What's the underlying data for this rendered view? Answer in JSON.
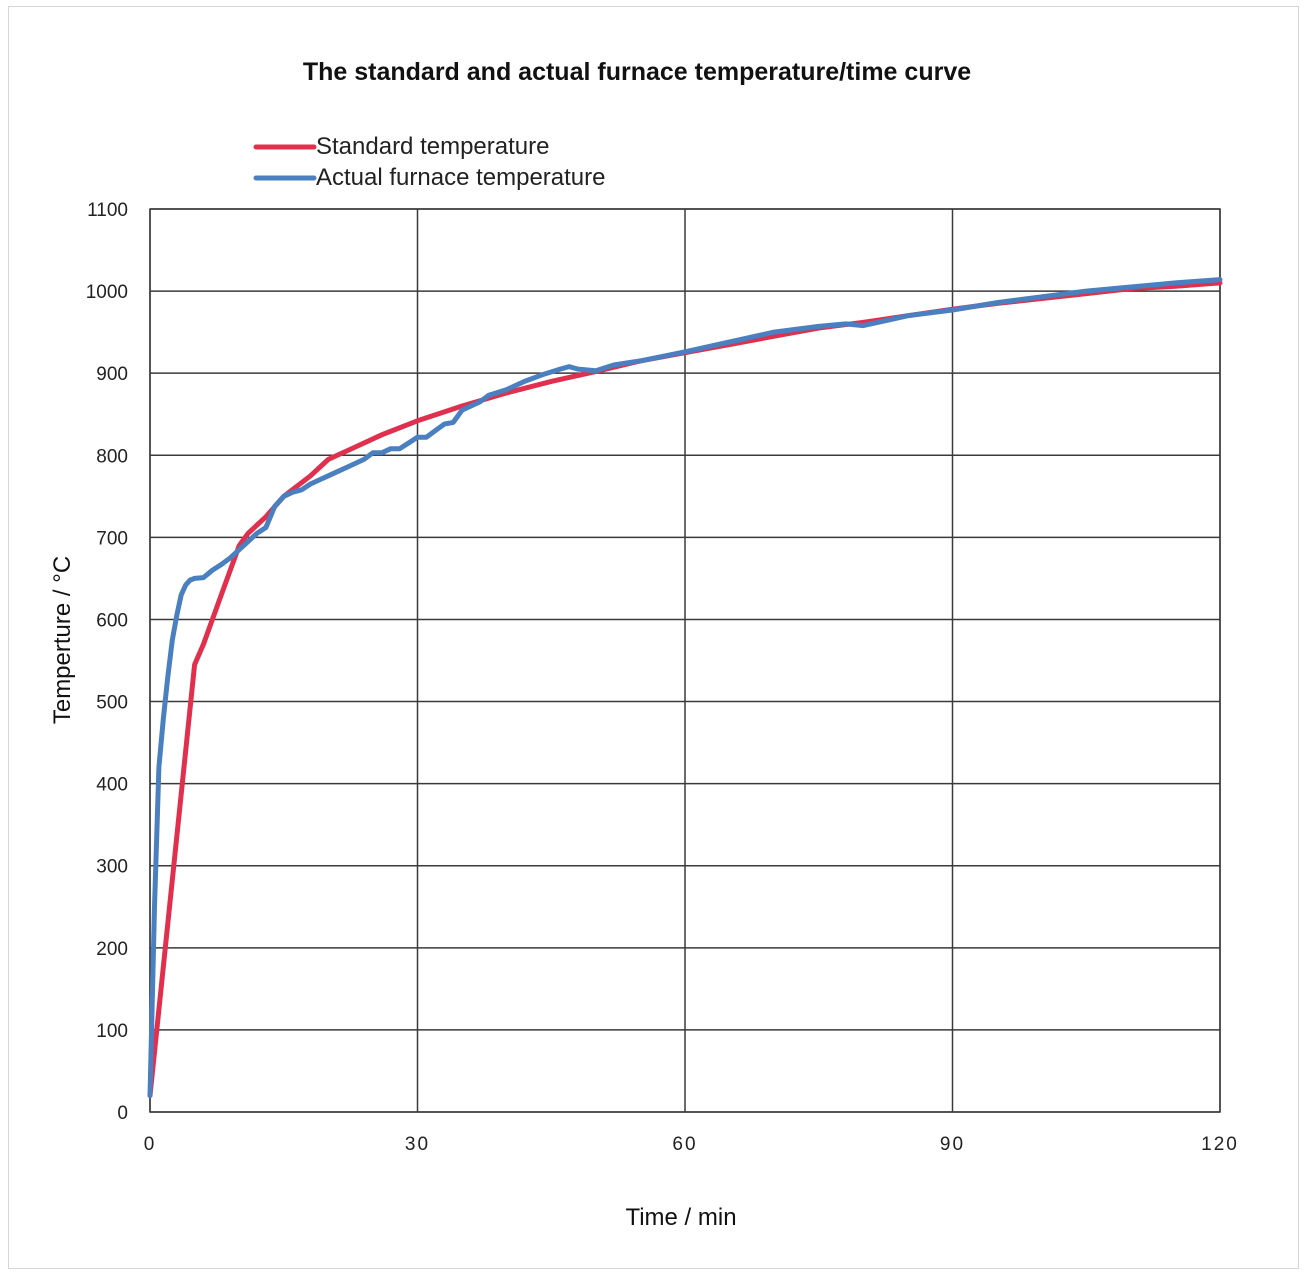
{
  "chart_data": {
    "type": "line",
    "title": "The standard and actual furnace temperature/time curve",
    "xlabel": "Time / min",
    "ylabel": "Temperture / °C",
    "xlim": [
      0,
      120
    ],
    "ylim": [
      0,
      1100
    ],
    "xticks": [
      "0",
      "30",
      "60",
      "90",
      "120"
    ],
    "yticks": [
      "0",
      "100",
      "200",
      "300",
      "400",
      "500",
      "600",
      "700",
      "800",
      "900",
      "1000",
      "1100"
    ],
    "xtick_values": [
      0,
      30,
      60,
      90,
      120
    ],
    "ytick_values": [
      0,
      100,
      200,
      300,
      400,
      500,
      600,
      700,
      800,
      900,
      1000,
      1100
    ],
    "grid": true,
    "legend_position": "top-left",
    "series": [
      {
        "name": "Standard temperature",
        "color": "#e0304e",
        "x": [
          0,
          5,
          6,
          8,
          10,
          11,
          13,
          15,
          18,
          20,
          23,
          26,
          30,
          35,
          40,
          45,
          50,
          55,
          60,
          65,
          70,
          75,
          80,
          85,
          90,
          95,
          100,
          105,
          110,
          115,
          120
        ],
        "y": [
          20,
          545,
          570,
          630,
          690,
          705,
          725,
          750,
          775,
          795,
          810,
          825,
          842,
          860,
          876,
          890,
          902,
          915,
          925,
          935,
          945,
          955,
          962,
          970,
          978,
          985,
          991,
          997,
          1003,
          1006,
          1010
        ]
      },
      {
        "name": "Actual furnace temperature",
        "color": "#4a7fc0",
        "x": [
          0,
          0.5,
          1,
          1.5,
          2,
          2.5,
          3,
          3.5,
          4,
          4.5,
          5,
          6,
          7,
          8,
          9,
          10,
          11,
          12,
          13,
          14,
          15,
          16,
          17,
          18,
          19,
          20,
          21,
          22,
          23,
          24,
          25,
          26,
          27,
          28,
          29,
          30,
          31,
          32,
          33,
          34,
          35,
          36,
          37,
          38,
          40,
          42,
          44,
          46,
          47,
          48,
          50,
          52,
          55,
          60,
          65,
          70,
          75,
          78,
          80,
          85,
          90,
          95,
          100,
          105,
          110,
          115,
          120
        ],
        "y": [
          20,
          250,
          420,
          480,
          530,
          575,
          605,
          630,
          642,
          648,
          650,
          651,
          660,
          667,
          675,
          685,
          695,
          705,
          712,
          738,
          750,
          755,
          758,
          765,
          770,
          775,
          780,
          785,
          790,
          795,
          803,
          803,
          808,
          808,
          815,
          822,
          822,
          830,
          838,
          840,
          855,
          860,
          865,
          873,
          880,
          890,
          898,
          905,
          908,
          905,
          903,
          910,
          915,
          926,
          938,
          950,
          957,
          960,
          958,
          970,
          977,
          986,
          993,
          1000,
          1005,
          1010,
          1014
        ]
      }
    ]
  }
}
